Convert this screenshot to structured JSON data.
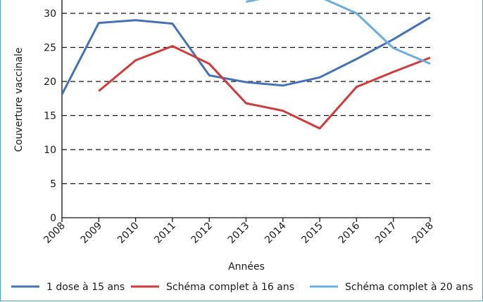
{
  "chart_data": {
    "type": "line",
    "title": "",
    "xlabel": "Années",
    "ylabel": "Couverture vaccinale",
    "x": [
      2008,
      2009,
      2010,
      2011,
      2012,
      2013,
      2014,
      2015,
      2016,
      2017,
      2018
    ],
    "ylim": [
      0,
      30
    ],
    "yticks": [
      0,
      5,
      10,
      15,
      20,
      25,
      30
    ],
    "grid": "horizontal-dashed",
    "legend_position": "bottom",
    "series": [
      {
        "name": "1 dose à 15 ans",
        "color": "#4472b4",
        "values": [
          18.1,
          28.6,
          29.0,
          28.5,
          20.9,
          19.9,
          19.4,
          20.6,
          23.3,
          26.2,
          29.4
        ]
      },
      {
        "name": "Schéma complet à 16 ans",
        "color": "#d03a3a",
        "values": [
          null,
          18.6,
          23.1,
          25.2,
          22.6,
          16.8,
          15.7,
          13.1,
          19.2,
          21.4,
          23.5
        ]
      },
      {
        "name": "Schéma complet à 20 ans",
        "color": "#6aaee0",
        "values": [
          null,
          null,
          null,
          null,
          null,
          31.7,
          32.8,
          32.4,
          30.0,
          24.9,
          22.6
        ]
      }
    ]
  }
}
